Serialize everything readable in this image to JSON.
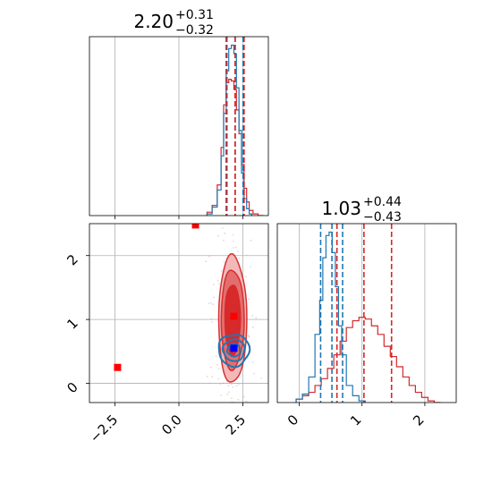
{
  "chart_data": {
    "type": "corner",
    "colors": {
      "posterior_a": "#1f77b4",
      "posterior_b": "#d62728",
      "marker_blue": "#0000ff",
      "marker_red": "#ff0000"
    },
    "grid": true,
    "panels": [
      {
        "id": "hist-param-1",
        "type": "histogram",
        "title_value": "2.20",
        "title_plus": "+0.31",
        "title_minus": "−0.32",
        "xlim": [
          -3.5,
          3.5
        ],
        "xticks": [
          -2.5,
          0.0,
          2.5
        ],
        "show_xtick_labels": false,
        "blue_hist": {
          "x": [
            1.2,
            1.4,
            1.6,
            1.7,
            1.8,
            1.9,
            2.0,
            2.1,
            2.2,
            2.3,
            2.4,
            2.5,
            2.6,
            2.7,
            2.8
          ],
          "density": [
            0.01,
            0.05,
            0.15,
            0.35,
            0.6,
            0.85,
            0.98,
            1.0,
            0.95,
            0.75,
            0.5,
            0.25,
            0.1,
            0.04,
            0.01
          ]
        },
        "red_hist": {
          "x": [
            1.2,
            1.4,
            1.6,
            1.7,
            1.8,
            1.9,
            2.0,
            2.1,
            2.2,
            2.3,
            2.4,
            2.5,
            2.6,
            2.7,
            2.8,
            3.0,
            3.2
          ],
          "density": [
            0.02,
            0.06,
            0.18,
            0.4,
            0.65,
            0.78,
            0.8,
            0.79,
            0.74,
            0.62,
            0.48,
            0.3,
            0.16,
            0.08,
            0.03,
            0.01,
            0.0
          ]
        },
        "blue_quantiles": [
          1.88,
          2.2,
          2.51
        ],
        "red_quantiles": [
          1.85,
          2.2,
          2.55
        ]
      },
      {
        "id": "hist-param-2",
        "type": "histogram",
        "title_value": "1.03",
        "title_plus": "+0.44",
        "title_minus": "−0.43",
        "xlim": [
          -0.35,
          2.5
        ],
        "xticks": [
          0,
          1,
          2
        ],
        "xtick_labels": [
          "0",
          "1",
          "2"
        ],
        "blue_hist": {
          "x": [
            0.0,
            0.1,
            0.2,
            0.3,
            0.35,
            0.4,
            0.45,
            0.5,
            0.55,
            0.6,
            0.65,
            0.7,
            0.8,
            0.9,
            1.0
          ],
          "density": [
            0.02,
            0.05,
            0.15,
            0.4,
            0.6,
            0.85,
            0.98,
            1.0,
            0.88,
            0.68,
            0.45,
            0.28,
            0.1,
            0.04,
            0.01
          ]
        },
        "red_hist": {
          "x": [
            0.0,
            0.1,
            0.2,
            0.3,
            0.4,
            0.5,
            0.6,
            0.7,
            0.8,
            0.9,
            1.0,
            1.1,
            1.2,
            1.3,
            1.4,
            1.5,
            1.6,
            1.7,
            1.8,
            1.9,
            2.0,
            2.1,
            2.2
          ],
          "density": [
            0.02,
            0.04,
            0.06,
            0.1,
            0.14,
            0.2,
            0.28,
            0.36,
            0.44,
            0.48,
            0.5,
            0.49,
            0.45,
            0.4,
            0.33,
            0.27,
            0.21,
            0.15,
            0.1,
            0.06,
            0.03,
            0.01,
            0.0
          ]
        },
        "blue_quantiles": [
          0.34,
          0.52,
          0.69
        ],
        "red_quantiles": [
          0.6,
          1.03,
          1.47
        ]
      },
      {
        "id": "joint-param-1-2",
        "type": "contour",
        "xlim": [
          -3.5,
          3.5
        ],
        "ylim": [
          -0.3,
          2.5
        ],
        "xticks": [
          -2.5,
          0.0,
          2.5
        ],
        "xtick_labels": [
          "−2.5",
          "0.0",
          "2.5"
        ],
        "yticks": [
          0,
          1,
          2
        ],
        "ytick_labels": [
          "0",
          "1",
          "2"
        ],
        "red_contours": [
          {
            "center": [
              2.1,
              1.0
            ],
            "radius": [
              0.55,
              1.0
            ],
            "level": "outer"
          },
          {
            "center": [
              2.1,
              1.0
            ],
            "radius": [
              0.45,
              0.78
            ],
            "level": "mid"
          },
          {
            "center": [
              2.1,
              1.0
            ],
            "radius": [
              0.3,
              0.55
            ],
            "level": "inner"
          }
        ],
        "blue_contours": [
          {
            "center": [
              2.15,
              0.52
            ],
            "radius": [
              0.6,
              0.25
            ],
            "level": "outer"
          },
          {
            "center": [
              2.15,
              0.52
            ],
            "radius": [
              0.42,
              0.17
            ],
            "level": "mid"
          },
          {
            "center": [
              2.15,
              0.52
            ],
            "radius": [
              0.25,
              0.1
            ],
            "level": "inner"
          }
        ],
        "red_markers": [
          {
            "x": 0.65,
            "y": 2.48
          },
          {
            "x": -2.4,
            "y": 0.25
          },
          {
            "x": 2.15,
            "y": 1.05
          }
        ],
        "blue_markers": [
          {
            "x": 2.15,
            "y": 0.55
          }
        ]
      }
    ]
  }
}
